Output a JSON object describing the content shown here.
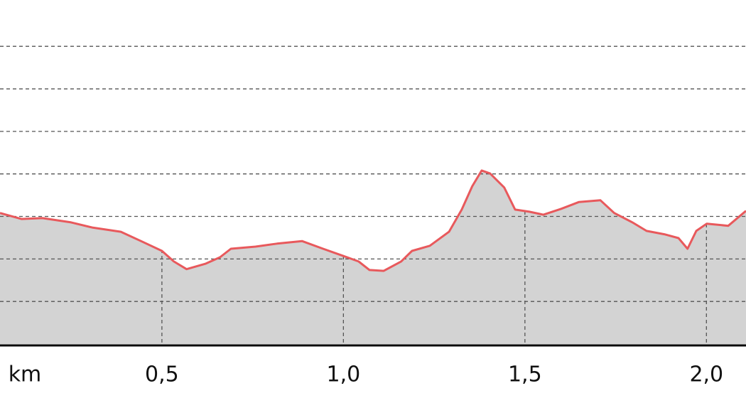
{
  "chart_data": {
    "type": "area",
    "x_label": "km",
    "x": [
      0.054,
      0.113,
      0.171,
      0.25,
      0.308,
      0.387,
      0.445,
      0.5,
      0.533,
      0.568,
      0.621,
      0.66,
      0.69,
      0.758,
      0.817,
      0.886,
      0.944,
      1.0,
      1.042,
      1.072,
      1.111,
      1.159,
      1.189,
      1.238,
      1.291,
      1.326,
      1.355,
      1.381,
      1.404,
      1.443,
      1.473,
      1.512,
      1.551,
      1.6,
      1.649,
      1.708,
      1.746,
      1.796,
      1.835,
      1.884,
      1.923,
      1.948,
      1.972,
      2.001,
      2.06,
      2.109
    ],
    "values": [
      3.08,
      2.94,
      2.96,
      2.86,
      2.74,
      2.64,
      2.41,
      2.19,
      1.94,
      1.76,
      1.89,
      2.04,
      2.24,
      2.29,
      2.36,
      2.42,
      2.24,
      2.07,
      1.94,
      1.74,
      1.72,
      1.94,
      2.19,
      2.31,
      2.64,
      3.16,
      3.71,
      4.08,
      4.01,
      3.68,
      3.16,
      3.11,
      3.04,
      3.18,
      3.34,
      3.38,
      3.08,
      2.86,
      2.66,
      2.58,
      2.49,
      2.24,
      2.66,
      2.83,
      2.78,
      3.13
    ],
    "color": "#e8595c",
    "fill_color": "#d3d3d3",
    "xlim": [
      0.054,
      2.109
    ],
    "ylim": [
      0,
      8.09
    ],
    "xticks": [
      {
        "value": 0.5,
        "label": "0,5"
      },
      {
        "value": 1.0,
        "label": "1,0"
      },
      {
        "value": 1.5,
        "label": "1,5"
      },
      {
        "value": 2.0,
        "label": "2,0"
      }
    ],
    "yticks": [
      1,
      2,
      3,
      4,
      5,
      6,
      7
    ],
    "grid": true
  }
}
